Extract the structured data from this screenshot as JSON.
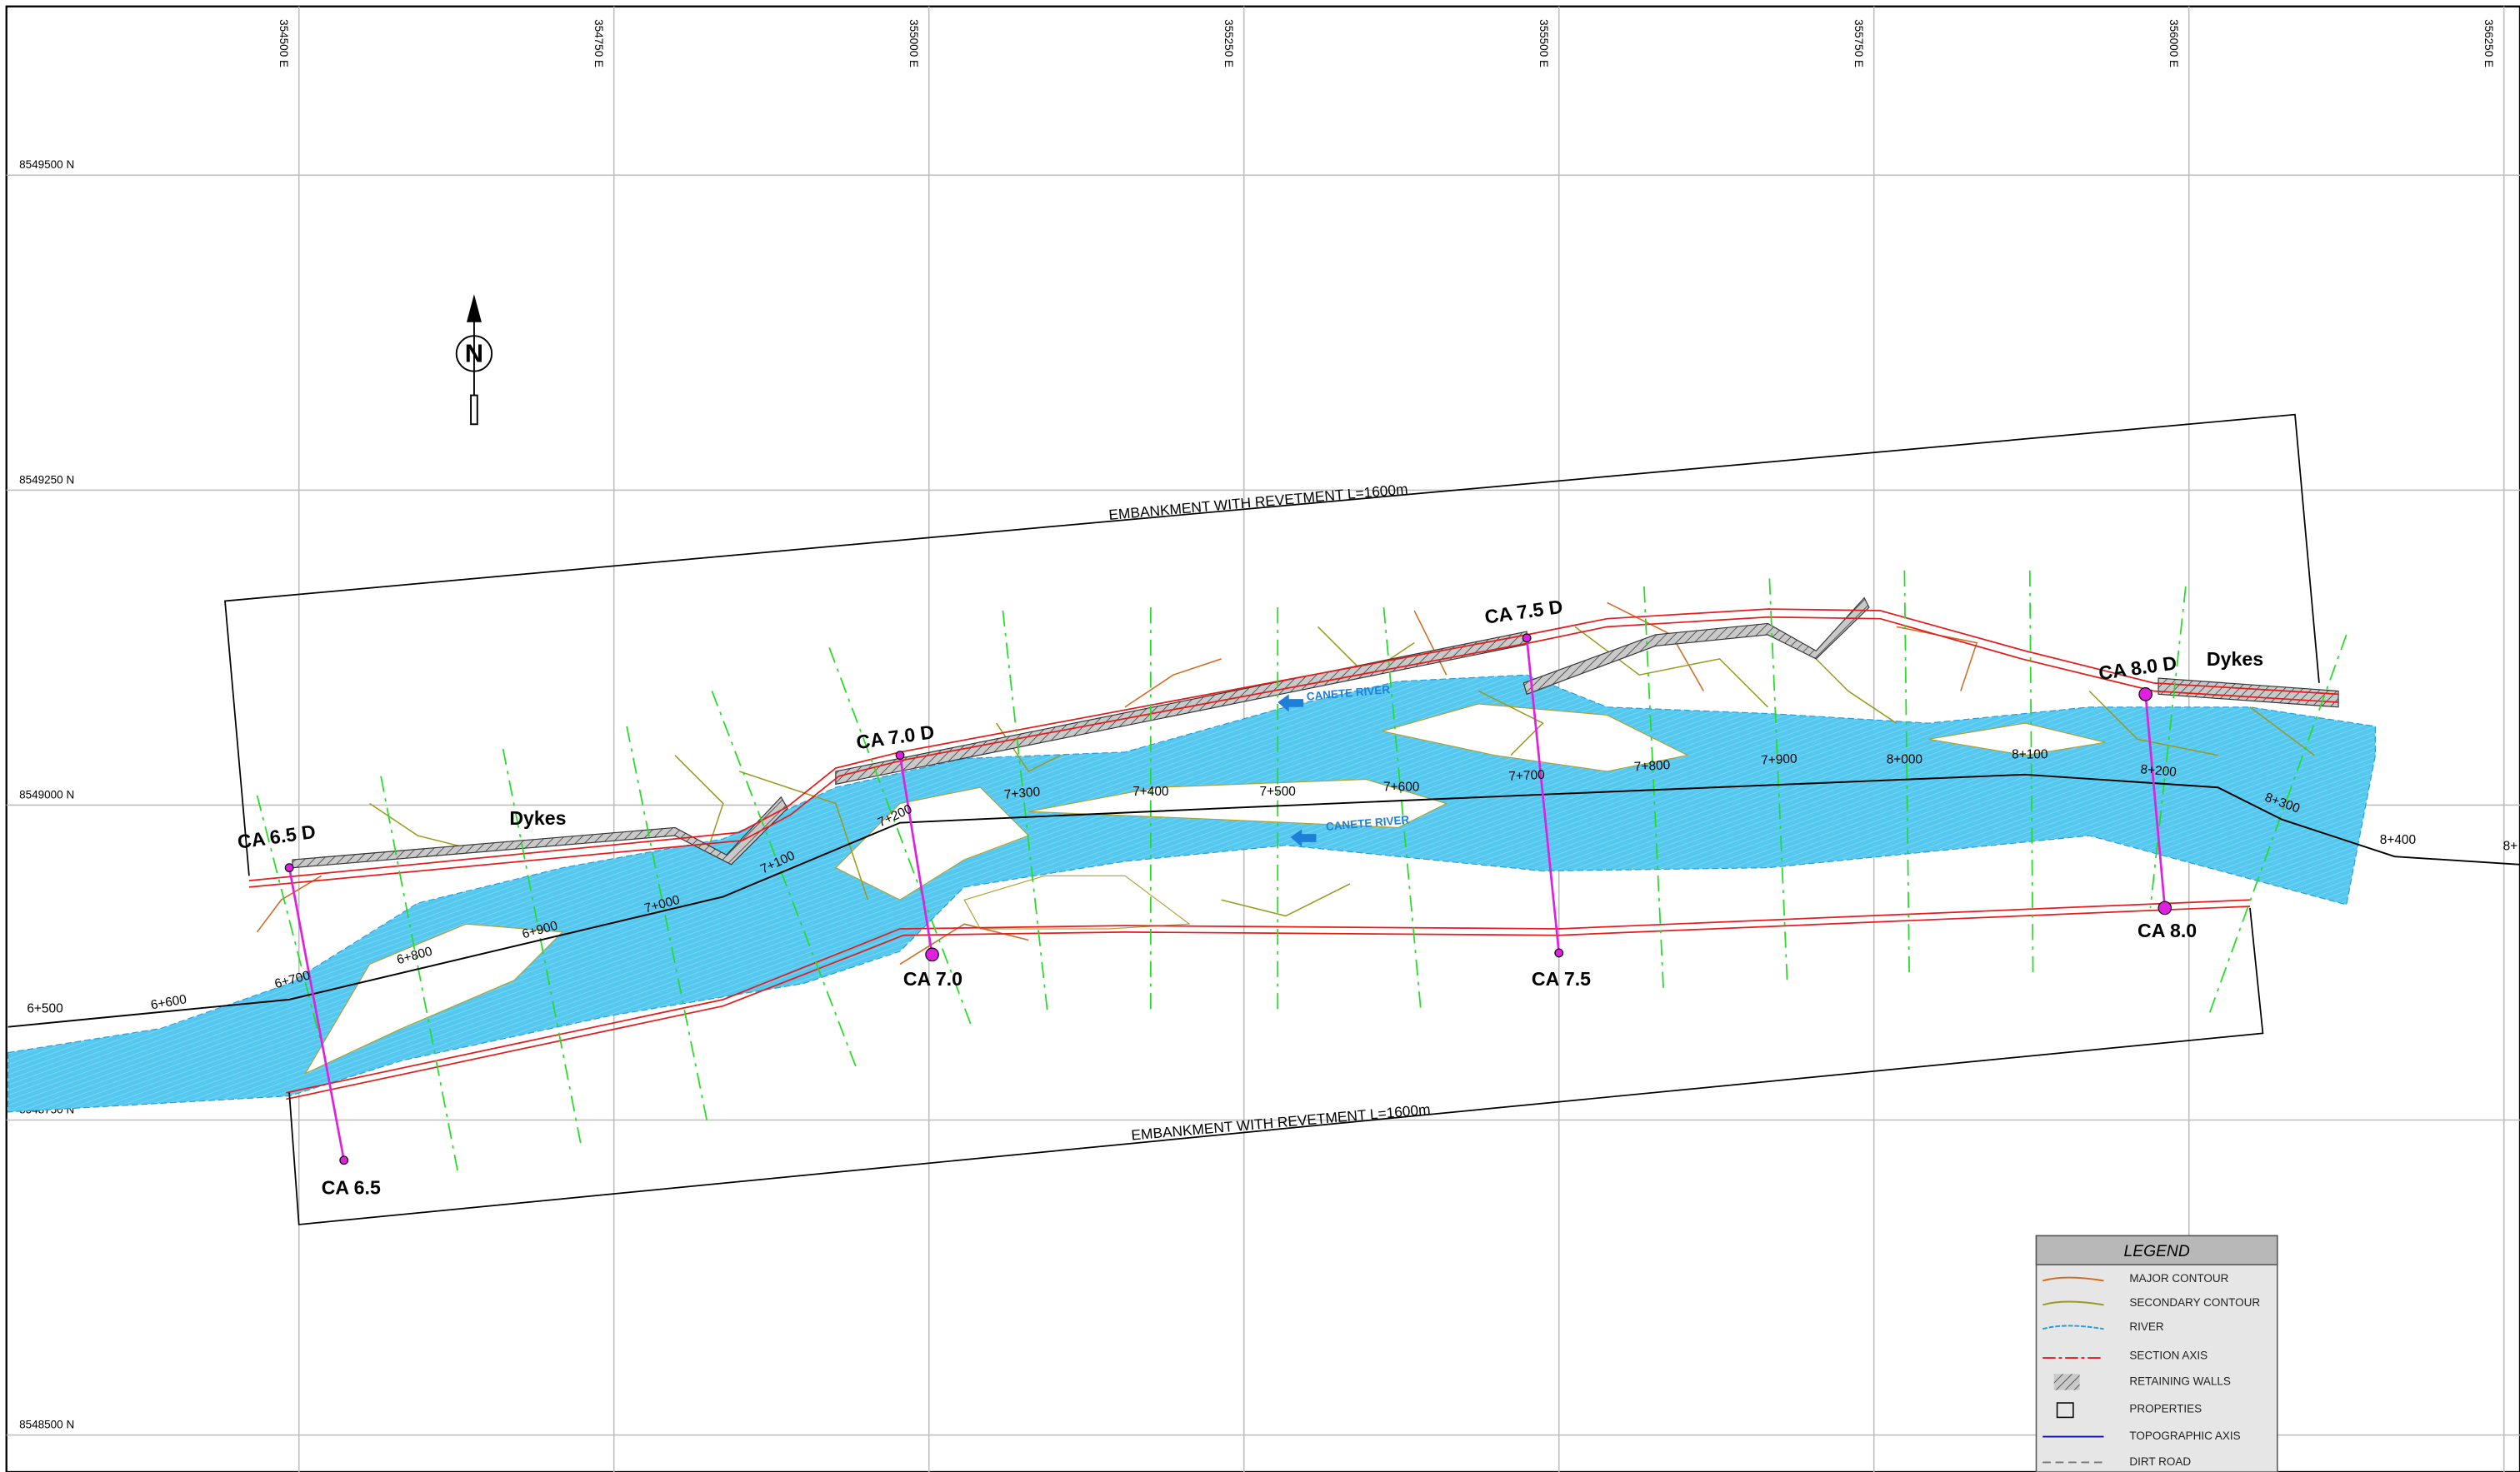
{
  "grid": {
    "eastings": [
      "354500 E",
      "354750 E",
      "355000 E",
      "355250 E",
      "355500 E",
      "355750 E",
      "356000 E",
      "356250 E"
    ],
    "northings": [
      "8549500 N",
      "8549250 N",
      "8549000 N",
      "8548750 N",
      "8548500 N"
    ]
  },
  "chainages": [
    "6+500",
    "6+600",
    "6+700",
    "6+800",
    "6+900",
    "7+000",
    "7+100",
    "7+200",
    "7+300",
    "7+400",
    "7+500",
    "7+600",
    "7+700",
    "7+800",
    "7+900",
    "8+000",
    "8+100",
    "8+200",
    "8+300",
    "8+400",
    "8+"
  ],
  "sections": [
    "CA 6.5 D",
    "CA 7.0 D",
    "CA 7.5 D",
    "CA 8.0 D",
    "CA 6.5",
    "CA 7.0",
    "CA 7.5",
    "CA 8.0"
  ],
  "dykes": [
    "Dykes",
    "Dykes"
  ],
  "river_labels": [
    "CANETE RIVER",
    "CANETE RIVER"
  ],
  "embankments": [
    "EMBANKMENT WITH REVETMENT  L=1600m",
    "EMBANKMENT WITH REVETMENT  L=1600m"
  ],
  "legend": {
    "title": "LEGEND",
    "items": [
      "MAJOR CONTOUR",
      "SECONDARY CONTOUR",
      "RIVER",
      "SECTION AXIS",
      "RETAINING WALLS",
      "PROPERTIES",
      "TOPOGRAPHIC AXIS",
      "DIRT ROAD"
    ]
  }
}
